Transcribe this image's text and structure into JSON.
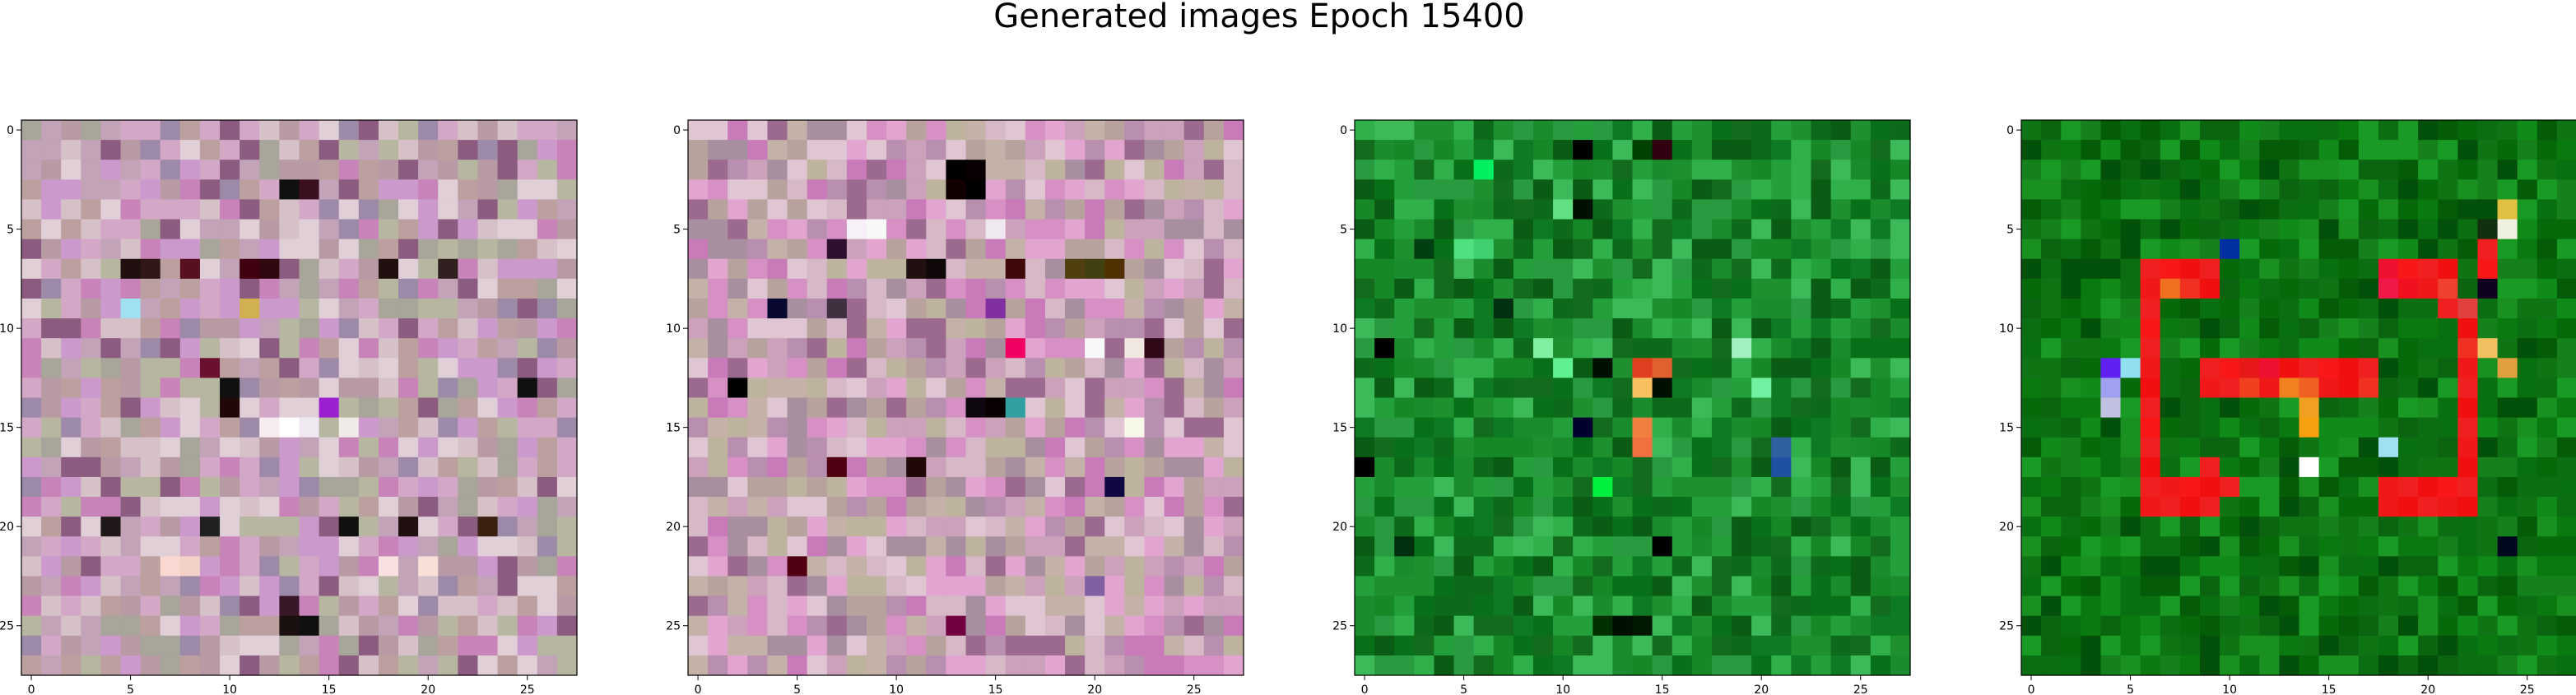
{
  "chart_data": {
    "type": "heatmap",
    "title": "Generated images Epoch 15400",
    "grid": false,
    "image_size": 28,
    "x_ticks": [
      0,
      5,
      10,
      15,
      20,
      25
    ],
    "y_ticks": [
      0,
      5,
      10,
      15,
      20,
      25
    ],
    "panels": [
      {
        "name": "panel-1",
        "palette": [
          "#c2a3b8",
          "#d3a8c6",
          "#b89aa5",
          "#a8a59a",
          "#d7c1c8",
          "#c884b8",
          "#9c8aa8",
          "#b7b6a1",
          "#e0cfd7",
          "#8c5c80",
          "#bca0a0",
          "#cc99cc"
        ],
        "accents": [
          {
            "x": 13,
            "y": 3,
            "color": "#101010"
          },
          {
            "x": 14,
            "y": 3,
            "color": "#3a1020"
          },
          {
            "x": 5,
            "y": 7,
            "color": "#201010"
          },
          {
            "x": 6,
            "y": 7,
            "color": "#301818"
          },
          {
            "x": 11,
            "y": 7,
            "color": "#400010"
          },
          {
            "x": 12,
            "y": 7,
            "color": "#300810"
          },
          {
            "x": 8,
            "y": 7,
            "color": "#581020"
          },
          {
            "x": 18,
            "y": 7,
            "color": "#201010"
          },
          {
            "x": 21,
            "y": 7,
            "color": "#302020"
          },
          {
            "x": 10,
            "y": 13,
            "color": "#101010"
          },
          {
            "x": 25,
            "y": 13,
            "color": "#101010"
          },
          {
            "x": 10,
            "y": 14,
            "color": "#200808"
          },
          {
            "x": 15,
            "y": 14,
            "color": "#9b20d0"
          },
          {
            "x": 9,
            "y": 12,
            "color": "#6a1030"
          },
          {
            "x": 4,
            "y": 20,
            "color": "#201818"
          },
          {
            "x": 9,
            "y": 20,
            "color": "#202020"
          },
          {
            "x": 16,
            "y": 20,
            "color": "#101010"
          },
          {
            "x": 19,
            "y": 20,
            "color": "#201010"
          },
          {
            "x": 23,
            "y": 20,
            "color": "#3a2010"
          },
          {
            "x": 14,
            "y": 25,
            "color": "#101010"
          },
          {
            "x": 13,
            "y": 25,
            "color": "#1a1010"
          },
          {
            "x": 13,
            "y": 24,
            "color": "#381828"
          },
          {
            "x": 14,
            "y": 15,
            "color": "#f0e8f0"
          },
          {
            "x": 13,
            "y": 15,
            "color": "#ffffff"
          },
          {
            "x": 12,
            "y": 15,
            "color": "#f7ecf0"
          },
          {
            "x": 16,
            "y": 15,
            "color": "#f0eae8"
          },
          {
            "x": 7,
            "y": 22,
            "color": "#f8d8d0"
          },
          {
            "x": 8,
            "y": 22,
            "color": "#f3d0c8"
          },
          {
            "x": 18,
            "y": 22,
            "color": "#f8e0e0"
          },
          {
            "x": 20,
            "y": 22,
            "color": "#f8e0d8"
          },
          {
            "x": 11,
            "y": 9,
            "color": "#d0b050"
          },
          {
            "x": 5,
            "y": 9,
            "color": "#a0e0f0"
          }
        ]
      },
      {
        "name": "panel-2",
        "palette": [
          "#cba1bb",
          "#d690c4",
          "#b7a29e",
          "#c4b1a8",
          "#e0c6d3",
          "#c97ab8",
          "#a88fa0",
          "#bdb39e",
          "#d6b8c7",
          "#9c6a8e",
          "#e2a5cf",
          "#b98fb0"
        ],
        "accents": [
          {
            "x": 13,
            "y": 2,
            "color": "#000000"
          },
          {
            "x": 14,
            "y": 2,
            "color": "#080000"
          },
          {
            "x": 13,
            "y": 3,
            "color": "#100000"
          },
          {
            "x": 14,
            "y": 3,
            "color": "#000000"
          },
          {
            "x": 8,
            "y": 5,
            "color": "#f8f0f8"
          },
          {
            "x": 9,
            "y": 5,
            "color": "#f8f8f8"
          },
          {
            "x": 15,
            "y": 5,
            "color": "#f0e8f0"
          },
          {
            "x": 7,
            "y": 6,
            "color": "#301030"
          },
          {
            "x": 11,
            "y": 7,
            "color": "#201010"
          },
          {
            "x": 12,
            "y": 7,
            "color": "#100808"
          },
          {
            "x": 16,
            "y": 7,
            "color": "#400808"
          },
          {
            "x": 19,
            "y": 7,
            "color": "#504010"
          },
          {
            "x": 20,
            "y": 7,
            "color": "#404010"
          },
          {
            "x": 21,
            "y": 7,
            "color": "#503000"
          },
          {
            "x": 4,
            "y": 9,
            "color": "#080830"
          },
          {
            "x": 7,
            "y": 9,
            "color": "#403040"
          },
          {
            "x": 15,
            "y": 9,
            "color": "#8030a0"
          },
          {
            "x": 16,
            "y": 11,
            "color": "#f00060"
          },
          {
            "x": 20,
            "y": 11,
            "color": "#f8f8f8"
          },
          {
            "x": 22,
            "y": 11,
            "color": "#f0e8e0"
          },
          {
            "x": 23,
            "y": 11,
            "color": "#300818"
          },
          {
            "x": 2,
            "y": 13,
            "color": "#000000"
          },
          {
            "x": 15,
            "y": 14,
            "color": "#080000"
          },
          {
            "x": 14,
            "y": 14,
            "color": "#100810"
          },
          {
            "x": 16,
            "y": 14,
            "color": "#30a0a0"
          },
          {
            "x": 7,
            "y": 17,
            "color": "#500010"
          },
          {
            "x": 11,
            "y": 17,
            "color": "#200808"
          },
          {
            "x": 22,
            "y": 15,
            "color": "#f8f8e8"
          },
          {
            "x": 21,
            "y": 18,
            "color": "#100840"
          },
          {
            "x": 5,
            "y": 22,
            "color": "#500010"
          },
          {
            "x": 13,
            "y": 25,
            "color": "#700040"
          },
          {
            "x": 20,
            "y": 23,
            "color": "#8060a0"
          }
        ]
      },
      {
        "name": "panel-3",
        "palette": [
          "#1a8c2e",
          "#0f7a24",
          "#23a03c",
          "#087018",
          "#2fb04a",
          "#136b1e",
          "#1e9030",
          "#3cba5a",
          "#0a5c14",
          "#178828",
          "#2a9a40",
          "#0c6a1a"
        ],
        "accents": [
          {
            "x": 6,
            "y": 2,
            "color": "#00f060"
          },
          {
            "x": 11,
            "y": 1,
            "color": "#000000"
          },
          {
            "x": 14,
            "y": 1,
            "color": "#004000"
          },
          {
            "x": 10,
            "y": 4,
            "color": "#60e080"
          },
          {
            "x": 11,
            "y": 4,
            "color": "#001000"
          },
          {
            "x": 15,
            "y": 1,
            "color": "#300010"
          },
          {
            "x": 3,
            "y": 6,
            "color": "#004010"
          },
          {
            "x": 5,
            "y": 6,
            "color": "#50e080"
          },
          {
            "x": 6,
            "y": 6,
            "color": "#40d070"
          },
          {
            "x": 7,
            "y": 9,
            "color": "#003010"
          },
          {
            "x": 1,
            "y": 11,
            "color": "#000000"
          },
          {
            "x": 9,
            "y": 11,
            "color": "#80f0a0"
          },
          {
            "x": 10,
            "y": 12,
            "color": "#60f090"
          },
          {
            "x": 12,
            "y": 12,
            "color": "#001000"
          },
          {
            "x": 14,
            "y": 12,
            "color": "#e04020"
          },
          {
            "x": 14,
            "y": 13,
            "color": "#f8c060"
          },
          {
            "x": 15,
            "y": 12,
            "color": "#e06030"
          },
          {
            "x": 15,
            "y": 13,
            "color": "#001000"
          },
          {
            "x": 19,
            "y": 11,
            "color": "#a0f0c0"
          },
          {
            "x": 20,
            "y": 13,
            "color": "#70f0a0"
          },
          {
            "x": 14,
            "y": 15,
            "color": "#f08040"
          },
          {
            "x": 14,
            "y": 16,
            "color": "#f07040"
          },
          {
            "x": 11,
            "y": 15,
            "color": "#000030"
          },
          {
            "x": 21,
            "y": 16,
            "color": "#3060a0"
          },
          {
            "x": 21,
            "y": 17,
            "color": "#2050a0"
          },
          {
            "x": 0,
            "y": 17,
            "color": "#000000"
          },
          {
            "x": 2,
            "y": 21,
            "color": "#003010"
          },
          {
            "x": 15,
            "y": 21,
            "color": "#000000"
          },
          {
            "x": 13,
            "y": 25,
            "color": "#001000"
          },
          {
            "x": 14,
            "y": 25,
            "color": "#001800"
          },
          {
            "x": 12,
            "y": 25,
            "color": "#003000"
          },
          {
            "x": 12,
            "y": 18,
            "color": "#00f040"
          }
        ]
      },
      {
        "name": "panel-4",
        "palette": [
          "#0a7a10",
          "#066a0a",
          "#108a18",
          "#045c08",
          "#1a9020",
          "#0e7414",
          "#087010",
          "#15801c",
          "#03500a",
          "#0c6e12",
          "#189a24",
          "#0a6410"
        ],
        "accents": [
          {
            "x": 6,
            "y": 7,
            "color": "#f02020"
          },
          {
            "x": 7,
            "y": 7,
            "color": "#f81818"
          },
          {
            "x": 8,
            "y": 7,
            "color": "#f01010"
          },
          {
            "x": 9,
            "y": 7,
            "color": "#f02020"
          },
          {
            "x": 6,
            "y": 8,
            "color": "#f01818"
          },
          {
            "x": 7,
            "y": 8,
            "color": "#f07020"
          },
          {
            "x": 8,
            "y": 8,
            "color": "#f03020"
          },
          {
            "x": 9,
            "y": 8,
            "color": "#f01010"
          },
          {
            "x": 18,
            "y": 7,
            "color": "#f01030"
          },
          {
            "x": 19,
            "y": 7,
            "color": "#f81818"
          },
          {
            "x": 20,
            "y": 7,
            "color": "#f02020"
          },
          {
            "x": 21,
            "y": 7,
            "color": "#f01010"
          },
          {
            "x": 18,
            "y": 8,
            "color": "#f01848"
          },
          {
            "x": 19,
            "y": 8,
            "color": "#f01020"
          },
          {
            "x": 20,
            "y": 8,
            "color": "#f01818"
          },
          {
            "x": 21,
            "y": 8,
            "color": "#f04030"
          },
          {
            "x": 6,
            "y": 9,
            "color": "#f02020"
          },
          {
            "x": 21,
            "y": 9,
            "color": "#f02020"
          },
          {
            "x": 22,
            "y": 9,
            "color": "#e04040"
          },
          {
            "x": 6,
            "y": 10,
            "color": "#f81818"
          },
          {
            "x": 22,
            "y": 10,
            "color": "#f01010"
          },
          {
            "x": 6,
            "y": 11,
            "color": "#f02020"
          },
          {
            "x": 22,
            "y": 11,
            "color": "#f03020"
          },
          {
            "x": 9,
            "y": 12,
            "color": "#f02020"
          },
          {
            "x": 10,
            "y": 12,
            "color": "#f81818"
          },
          {
            "x": 11,
            "y": 12,
            "color": "#e81818"
          },
          {
            "x": 12,
            "y": 12,
            "color": "#f01030"
          },
          {
            "x": 13,
            "y": 12,
            "color": "#f01010"
          },
          {
            "x": 14,
            "y": 12,
            "color": "#f02020"
          },
          {
            "x": 15,
            "y": 12,
            "color": "#f81818"
          },
          {
            "x": 16,
            "y": 12,
            "color": "#f01010"
          },
          {
            "x": 17,
            "y": 12,
            "color": "#f02020"
          },
          {
            "x": 9,
            "y": 13,
            "color": "#f01818"
          },
          {
            "x": 10,
            "y": 13,
            "color": "#f02020"
          },
          {
            "x": 11,
            "y": 13,
            "color": "#f04020"
          },
          {
            "x": 12,
            "y": 13,
            "color": "#f01818"
          },
          {
            "x": 13,
            "y": 13,
            "color": "#f08020"
          },
          {
            "x": 14,
            "y": 13,
            "color": "#f06020"
          },
          {
            "x": 15,
            "y": 13,
            "color": "#f01818"
          },
          {
            "x": 16,
            "y": 13,
            "color": "#f01010"
          },
          {
            "x": 17,
            "y": 13,
            "color": "#f03020"
          },
          {
            "x": 22,
            "y": 12,
            "color": "#f01818"
          },
          {
            "x": 22,
            "y": 13,
            "color": "#f02020"
          },
          {
            "x": 6,
            "y": 12,
            "color": "#f01818"
          },
          {
            "x": 6,
            "y": 13,
            "color": "#f01010"
          },
          {
            "x": 6,
            "y": 14,
            "color": "#f02020"
          },
          {
            "x": 14,
            "y": 14,
            "color": "#f0a020"
          },
          {
            "x": 22,
            "y": 14,
            "color": "#f01010"
          },
          {
            "x": 6,
            "y": 15,
            "color": "#f81818"
          },
          {
            "x": 22,
            "y": 15,
            "color": "#f02020"
          },
          {
            "x": 6,
            "y": 16,
            "color": "#f02020"
          },
          {
            "x": 22,
            "y": 16,
            "color": "#f01818"
          },
          {
            "x": 6,
            "y": 17,
            "color": "#f01010"
          },
          {
            "x": 9,
            "y": 17,
            "color": "#f02020"
          },
          {
            "x": 22,
            "y": 17,
            "color": "#f01010"
          },
          {
            "x": 6,
            "y": 18,
            "color": "#f02020"
          },
          {
            "x": 7,
            "y": 18,
            "color": "#f01818"
          },
          {
            "x": 8,
            "y": 18,
            "color": "#f81818"
          },
          {
            "x": 9,
            "y": 18,
            "color": "#f01010"
          },
          {
            "x": 10,
            "y": 18,
            "color": "#f02020"
          },
          {
            "x": 18,
            "y": 18,
            "color": "#f01818"
          },
          {
            "x": 19,
            "y": 18,
            "color": "#f02020"
          },
          {
            "x": 20,
            "y": 18,
            "color": "#f01010"
          },
          {
            "x": 21,
            "y": 18,
            "color": "#f81818"
          },
          {
            "x": 22,
            "y": 18,
            "color": "#f02020"
          },
          {
            "x": 6,
            "y": 19,
            "color": "#f01818"
          },
          {
            "x": 7,
            "y": 19,
            "color": "#f02020"
          },
          {
            "x": 8,
            "y": 19,
            "color": "#f01010"
          },
          {
            "x": 9,
            "y": 19,
            "color": "#f02020"
          },
          {
            "x": 18,
            "y": 19,
            "color": "#f01818"
          },
          {
            "x": 19,
            "y": 19,
            "color": "#f01010"
          },
          {
            "x": 20,
            "y": 19,
            "color": "#f02020"
          },
          {
            "x": 21,
            "y": 19,
            "color": "#f01818"
          },
          {
            "x": 22,
            "y": 19,
            "color": "#f01010"
          },
          {
            "x": 14,
            "y": 15,
            "color": "#f8a010"
          },
          {
            "x": 14,
            "y": 17,
            "color": "#ffffff"
          },
          {
            "x": 18,
            "y": 16,
            "color": "#a0e0f0"
          },
          {
            "x": 4,
            "y": 12,
            "color": "#6020f0"
          },
          {
            "x": 4,
            "y": 13,
            "color": "#a0a0f0"
          },
          {
            "x": 5,
            "y": 12,
            "color": "#90e0f0"
          },
          {
            "x": 4,
            "y": 14,
            "color": "#c0c0e0"
          },
          {
            "x": 10,
            "y": 6,
            "color": "#0030a0"
          },
          {
            "x": 24,
            "y": 4,
            "color": "#e0c040"
          },
          {
            "x": 24,
            "y": 5,
            "color": "#f0f0e0"
          },
          {
            "x": 23,
            "y": 5,
            "color": "#103010"
          },
          {
            "x": 23,
            "y": 6,
            "color": "#f02020"
          },
          {
            "x": 23,
            "y": 7,
            "color": "#f81818"
          },
          {
            "x": 23,
            "y": 8,
            "color": "#100020"
          },
          {
            "x": 24,
            "y": 12,
            "color": "#e0a040"
          },
          {
            "x": 23,
            "y": 11,
            "color": "#f0c060"
          },
          {
            "x": 24,
            "y": 21,
            "color": "#000820"
          }
        ]
      }
    ]
  }
}
